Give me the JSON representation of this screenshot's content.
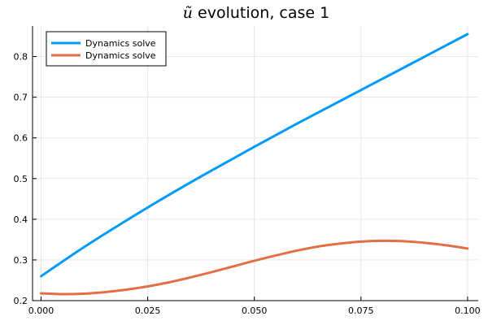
{
  "chart_data": {
    "type": "line",
    "title": {
      "var": "ũ",
      "text": " evolution, case 1"
    },
    "xlabel": "",
    "ylabel": "",
    "xlim": [
      -0.002,
      0.1025
    ],
    "ylim": [
      0.2,
      0.875
    ],
    "xticks": [
      0.0,
      0.025,
      0.05,
      0.075,
      0.1
    ],
    "xtick_labels": [
      "0.000",
      "0.025",
      "0.050",
      "0.075",
      "0.100"
    ],
    "yticks": [
      0.2,
      0.3,
      0.4,
      0.5,
      0.6,
      0.7,
      0.8
    ],
    "ytick_labels": [
      "0.2",
      "0.3",
      "0.4",
      "0.5",
      "0.6",
      "0.7",
      "0.8"
    ],
    "grid": true,
    "legend_position": "top-left",
    "series": [
      {
        "name": "Dynamics solve",
        "color": "#009af9",
        "x": [
          0.0,
          0.01,
          0.02,
          0.03,
          0.04,
          0.05,
          0.06,
          0.07,
          0.08,
          0.09,
          0.1
        ],
        "y": [
          0.26,
          0.331,
          0.397,
          0.46,
          0.52,
          0.578,
          0.635,
          0.69,
          0.745,
          0.8,
          0.855
        ]
      },
      {
        "name": "Dynamics solve",
        "color": "#e26f46",
        "x": [
          0.0,
          0.005,
          0.01,
          0.015,
          0.02,
          0.025,
          0.03,
          0.035,
          0.04,
          0.045,
          0.05,
          0.055,
          0.06,
          0.065,
          0.07,
          0.075,
          0.08,
          0.085,
          0.09,
          0.095,
          0.1
        ],
        "y": [
          0.218,
          0.216,
          0.217,
          0.221,
          0.227,
          0.235,
          0.245,
          0.257,
          0.27,
          0.284,
          0.298,
          0.311,
          0.323,
          0.333,
          0.34,
          0.345,
          0.347,
          0.346,
          0.342,
          0.336,
          0.328
        ]
      }
    ]
  }
}
